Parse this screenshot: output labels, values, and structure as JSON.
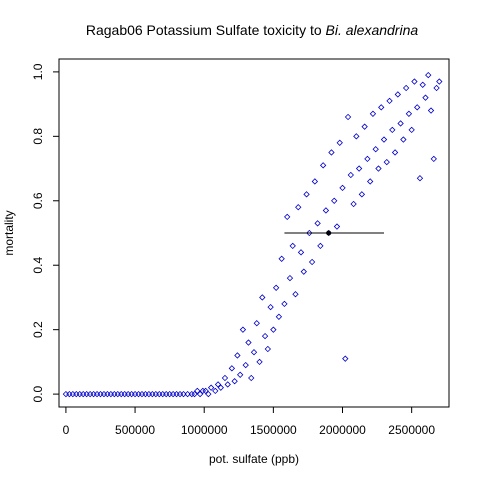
{
  "chart_data": {
    "type": "scatter",
    "title": "Ragab06 Potassium Sulfate toxicity to ",
    "title_species": "Bi. alexandrina",
    "xlabel": "pot. sulfate (ppb)",
    "ylabel": "mortality",
    "xlim": [
      -50000,
      2770000
    ],
    "ylim": [
      -0.04,
      1.04
    ],
    "x_ticks": [
      0,
      500000,
      1000000,
      1500000,
      2000000,
      2500000
    ],
    "x_tick_labels": [
      "0",
      "500000",
      "1000000",
      "1500000",
      "2000000",
      "2500000"
    ],
    "y_ticks": [
      0.0,
      0.2,
      0.4,
      0.6,
      0.8,
      1.0
    ],
    "y_tick_labels": [
      "0.0",
      "0.2",
      "0.4",
      "0.6",
      "0.8",
      "1.0"
    ],
    "grid": false,
    "marker": "open diamond",
    "marker_color": "#0000cc",
    "series": [
      {
        "points": [
          [
            0,
            0.0
          ],
          [
            25000,
            0.0
          ],
          [
            50000,
            0.0
          ],
          [
            75000,
            0.0
          ],
          [
            100000,
            0.0
          ],
          [
            125000,
            0.0
          ],
          [
            150000,
            0.0
          ],
          [
            175000,
            0.0
          ],
          [
            200000,
            0.0
          ],
          [
            225000,
            0.0
          ],
          [
            250000,
            0.0
          ],
          [
            275000,
            0.0
          ],
          [
            300000,
            0.0
          ],
          [
            325000,
            0.0
          ],
          [
            350000,
            0.0
          ],
          [
            375000,
            0.0
          ],
          [
            400000,
            0.0
          ],
          [
            425000,
            0.0
          ],
          [
            450000,
            0.0
          ],
          [
            475000,
            0.0
          ],
          [
            500000,
            0.0
          ],
          [
            525000,
            0.0
          ],
          [
            550000,
            0.0
          ],
          [
            575000,
            0.0
          ],
          [
            600000,
            0.0
          ],
          [
            625000,
            0.0
          ],
          [
            650000,
            0.0
          ],
          [
            675000,
            0.0
          ],
          [
            700000,
            0.0
          ],
          [
            725000,
            0.0
          ],
          [
            750000,
            0.0
          ],
          [
            775000,
            0.0
          ],
          [
            800000,
            0.0
          ],
          [
            825000,
            0.0
          ],
          [
            850000,
            0.0
          ],
          [
            880000,
            0.0
          ],
          [
            910000,
            0.0
          ],
          [
            930000,
            0.0
          ],
          [
            950000,
            0.01
          ],
          [
            970000,
            0.0
          ],
          [
            990000,
            0.01
          ],
          [
            1010000,
            0.01
          ],
          [
            1030000,
            0.0
          ],
          [
            1050000,
            0.02
          ],
          [
            1080000,
            0.01
          ],
          [
            1100000,
            0.03
          ],
          [
            1120000,
            0.02
          ],
          [
            1150000,
            0.05
          ],
          [
            1170000,
            0.03
          ],
          [
            1200000,
            0.08
          ],
          [
            1220000,
            0.04
          ],
          [
            1240000,
            0.12
          ],
          [
            1260000,
            0.06
          ],
          [
            1280000,
            0.2
          ],
          [
            1300000,
            0.09
          ],
          [
            1320000,
            0.16
          ],
          [
            1340000,
            0.05
          ],
          [
            1360000,
            0.13
          ],
          [
            1380000,
            0.22
          ],
          [
            1400000,
            0.1
          ],
          [
            1420000,
            0.3
          ],
          [
            1440000,
            0.18
          ],
          [
            1460000,
            0.14
          ],
          [
            1480000,
            0.27
          ],
          [
            1500000,
            0.2
          ],
          [
            1520000,
            0.33
          ],
          [
            1540000,
            0.24
          ],
          [
            1560000,
            0.42
          ],
          [
            1580000,
            0.28
          ],
          [
            1600000,
            0.55
          ],
          [
            1620000,
            0.36
          ],
          [
            1640000,
            0.46
          ],
          [
            1660000,
            0.31
          ],
          [
            1680000,
            0.58
          ],
          [
            1700000,
            0.44
          ],
          [
            1720000,
            0.38
          ],
          [
            1740000,
            0.62
          ],
          [
            1760000,
            0.5
          ],
          [
            1780000,
            0.41
          ],
          [
            1800000,
            0.66
          ],
          [
            1820000,
            0.53
          ],
          [
            1840000,
            0.46
          ],
          [
            1860000,
            0.71
          ],
          [
            1880000,
            0.57
          ],
          [
            1900000,
            0.5
          ],
          [
            1920000,
            0.75
          ],
          [
            1940000,
            0.6
          ],
          [
            1960000,
            0.52
          ],
          [
            1980000,
            0.78
          ],
          [
            2000000,
            0.64
          ],
          [
            2020000,
            0.11
          ],
          [
            2040000,
            0.86
          ],
          [
            2060000,
            0.68
          ],
          [
            2080000,
            0.59
          ],
          [
            2100000,
            0.8
          ],
          [
            2120000,
            0.7
          ],
          [
            2140000,
            0.62
          ],
          [
            2160000,
            0.83
          ],
          [
            2180000,
            0.73
          ],
          [
            2200000,
            0.66
          ],
          [
            2220000,
            0.87
          ],
          [
            2240000,
            0.76
          ],
          [
            2260000,
            0.7
          ],
          [
            2280000,
            0.89
          ],
          [
            2300000,
            0.79
          ],
          [
            2320000,
            0.72
          ],
          [
            2340000,
            0.91
          ],
          [
            2360000,
            0.82
          ],
          [
            2380000,
            0.75
          ],
          [
            2400000,
            0.93
          ],
          [
            2420000,
            0.84
          ],
          [
            2440000,
            0.79
          ],
          [
            2460000,
            0.95
          ],
          [
            2480000,
            0.87
          ],
          [
            2500000,
            0.82
          ],
          [
            2520000,
            0.97
          ],
          [
            2540000,
            0.89
          ],
          [
            2560000,
            0.67
          ],
          [
            2580000,
            0.96
          ],
          [
            2600000,
            0.92
          ],
          [
            2620000,
            0.99
          ],
          [
            2640000,
            0.88
          ],
          [
            2660000,
            0.73
          ],
          [
            2680000,
            0.95
          ],
          [
            2700000,
            0.97
          ]
        ]
      }
    ],
    "estimate": {
      "x": 1900000,
      "y": 0.5,
      "interval_low": 1580000,
      "interval_high": 2300000
    }
  }
}
